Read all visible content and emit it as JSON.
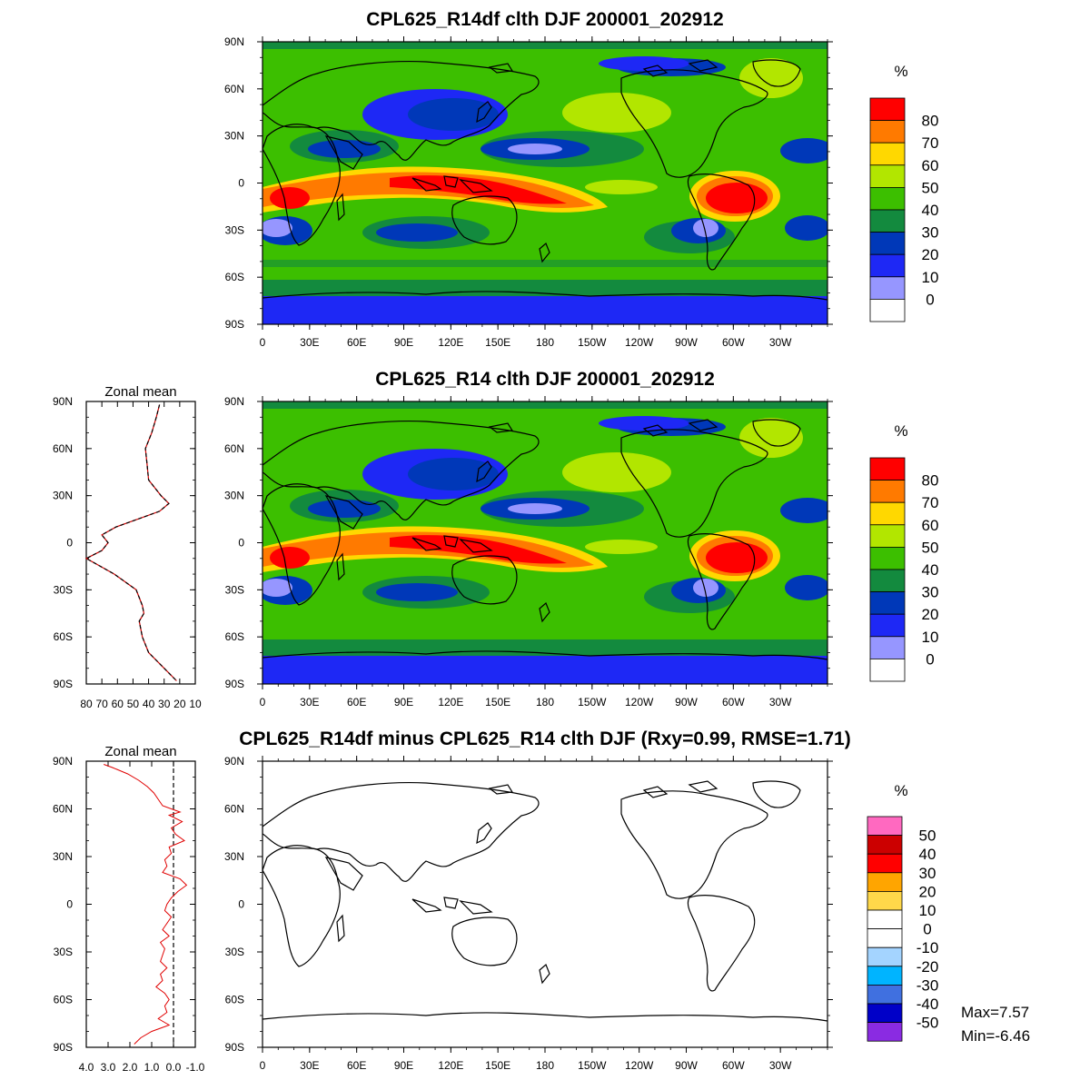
{
  "panels": [
    {
      "title": "CPL625_R14df clth DJF 200001_202912",
      "unit": "%",
      "legend_labels": [
        "80",
        "70",
        "60",
        "50",
        "40",
        "30",
        "20",
        "10",
        "0"
      ],
      "legend_colors": [
        "#ff0000",
        "#ff7a00",
        "#ffd800",
        "#b2e600",
        "#3cbf00",
        "#138a3e",
        "#0038b8",
        "#1e28f5",
        "#9696ff",
        "#ffffff"
      ]
    },
    {
      "title": "CPL625_R14 clth DJF 200001_202912",
      "unit": "%",
      "legend_labels": [
        "80",
        "70",
        "60",
        "50",
        "40",
        "30",
        "20",
        "10",
        "0"
      ],
      "legend_colors": [
        "#ff0000",
        "#ff7a00",
        "#ffd800",
        "#b2e600",
        "#3cbf00",
        "#138a3e",
        "#0038b8",
        "#1e28f5",
        "#9696ff",
        "#ffffff"
      ]
    },
    {
      "title": "CPL625_R14df minus CPL625_R14 clth DJF (Rxy=0.99, RMSE=1.71)",
      "unit": "%",
      "legend_labels": [
        "50",
        "40",
        "30",
        "20",
        "10",
        "0",
        "-10",
        "-20",
        "-30",
        "-40",
        "-50"
      ],
      "legend_colors": [
        "#ff69c0",
        "#cc0000",
        "#ff0000",
        "#ffa500",
        "#ffd84a",
        "#ffffff",
        "#ffffff",
        "#a4d4ff",
        "#00b4ff",
        "#4070e0",
        "#0000c8",
        "#8a2be2"
      ],
      "stats_max": "Max=7.57",
      "stats_min": "Min=-6.46"
    }
  ],
  "lon_ticks": [
    "0",
    "30E",
    "60E",
    "90E",
    "120E",
    "150E",
    "180",
    "150W",
    "120W",
    "90W",
    "60W",
    "30W"
  ],
  "lat_ticks": [
    "90N",
    "60N",
    "30N",
    "0",
    "30S",
    "60S",
    "90S"
  ],
  "zonal_mean": [
    {
      "title": "Zonal mean",
      "x_ticks": [
        "80",
        "70",
        "60",
        "50",
        "40",
        "30",
        "20",
        "10"
      ],
      "xlim": [
        80,
        10
      ]
    },
    {
      "title": "Zonal mean",
      "x_ticks": [
        "4.0",
        "3.0",
        "2.0",
        "1.0",
        "0.0",
        "-1.0"
      ],
      "xlim": [
        4.0,
        -1.0
      ]
    }
  ],
  "chart_data": [
    {
      "type": "line",
      "title": "Zonal mean",
      "xlim": [
        80,
        10
      ],
      "ylim": [
        -90,
        90
      ],
      "series": [
        {
          "lat": [
            88,
            80,
            70,
            60,
            50,
            40,
            30,
            25,
            20,
            10,
            5,
            0,
            -5,
            -10,
            -15,
            -20,
            -30,
            -40,
            -45,
            -50,
            -60,
            -70,
            -80,
            -88
          ],
          "values": [
            33,
            35,
            38,
            42,
            41,
            40,
            32,
            27,
            33,
            61,
            70,
            66,
            70,
            80,
            71,
            62,
            48,
            44,
            43,
            46,
            44,
            40,
            30,
            22
          ]
        }
      ]
    },
    {
      "type": "line",
      "title": "Zonal mean",
      "xlim": [
        4.0,
        -1.0
      ],
      "ylim": [
        -90,
        90
      ],
      "series": [
        {
          "lat": [
            88,
            86,
            82,
            78,
            74,
            70,
            66,
            62,
            58,
            56,
            52,
            48,
            44,
            40,
            36,
            32,
            28,
            24,
            20,
            16,
            12,
            8,
            4,
            0,
            -4,
            -8,
            -12,
            -16,
            -20,
            -24,
            -28,
            -32,
            -36,
            -40,
            -44,
            -48,
            -52,
            -56,
            -60,
            -64,
            -68,
            -72,
            -76,
            -80,
            -84,
            -88
          ],
          "values": [
            3.2,
            2.8,
            2.1,
            1.6,
            1.2,
            0.9,
            0.7,
            0.5,
            -0.3,
            0.2,
            -0.4,
            0.1,
            -0.1,
            -0.5,
            0.2,
            0.1,
            0.4,
            0.3,
            0.5,
            -0.3,
            -0.6,
            -0.2,
            0.1,
            0.3,
            0.4,
            0.1,
            0.3,
            0.5,
            0.2,
            0.6,
            0.4,
            0.5,
            0.6,
            0.3,
            0.6,
            0.5,
            0.8,
            0.4,
            0.2,
            0.4,
            0.3,
            0.7,
            0.2,
            1.0,
            1.5,
            1.8
          ]
        }
      ]
    }
  ]
}
